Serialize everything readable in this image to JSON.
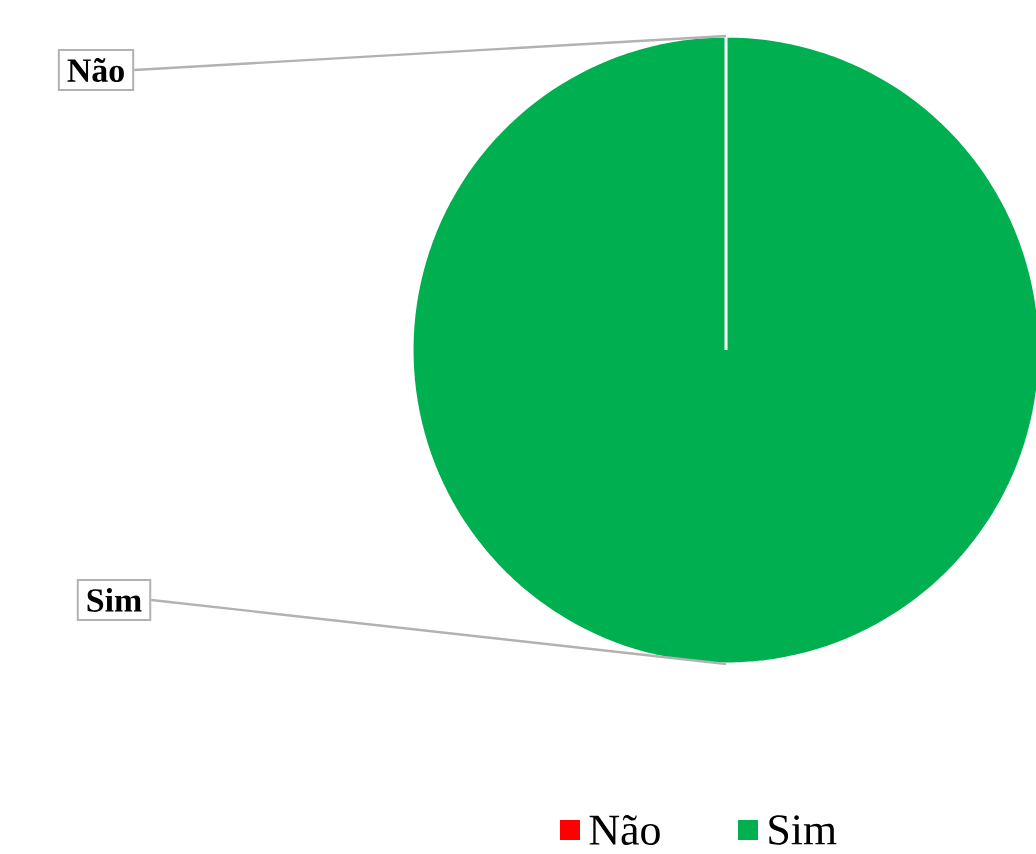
{
  "chart_data": {
    "type": "pie",
    "categories": [
      "Não",
      "Sim"
    ],
    "values": [
      0,
      100
    ],
    "colors": [
      "#ff0000",
      "#00b050"
    ],
    "legend": "bottom"
  }
}
